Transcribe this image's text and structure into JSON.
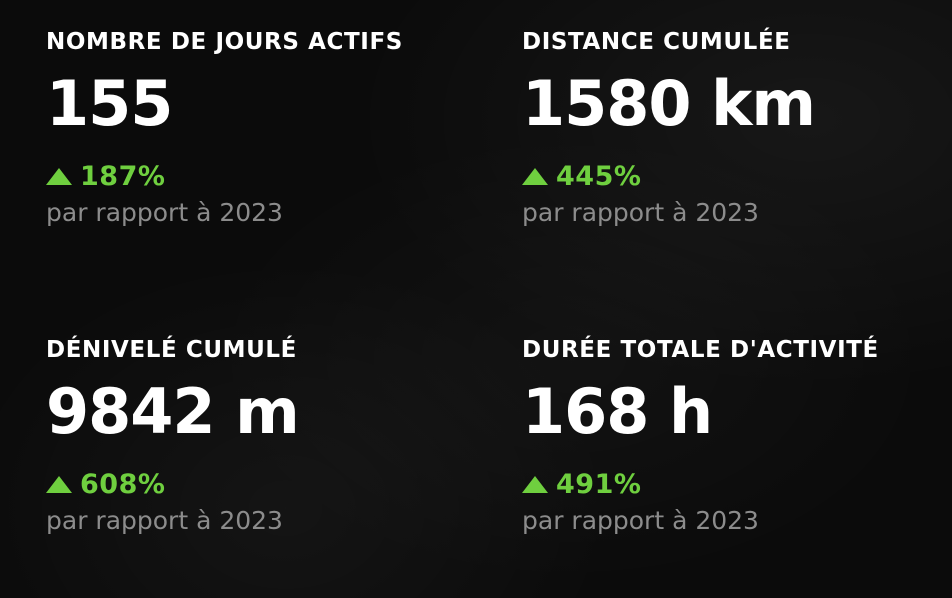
{
  "stats": [
    {
      "label": "NOMBRE DE JOURS ACTIFS",
      "value": "155",
      "change": "187%",
      "comparison": "par rapport à 2023"
    },
    {
      "label": "DISTANCE CUMULÉE",
      "value": "1580 km",
      "change": "445%",
      "comparison": "par rapport à 2023"
    },
    {
      "label": "DÉNIVELÉ CUMULÉ",
      "value": "9842 m",
      "change": "608%",
      "comparison": "par rapport à 2023"
    },
    {
      "label": "DURÉE TOTALE D'ACTIVITÉ",
      "value": "168 h",
      "change": "491%",
      "comparison": "par rapport à 2023"
    }
  ],
  "colors": {
    "background": "#0b0b0b",
    "text": "#ffffff",
    "increase": "#6fcf3f",
    "muted": "#8c8c8c"
  },
  "icons": {
    "increase": "triangle-up-icon"
  }
}
